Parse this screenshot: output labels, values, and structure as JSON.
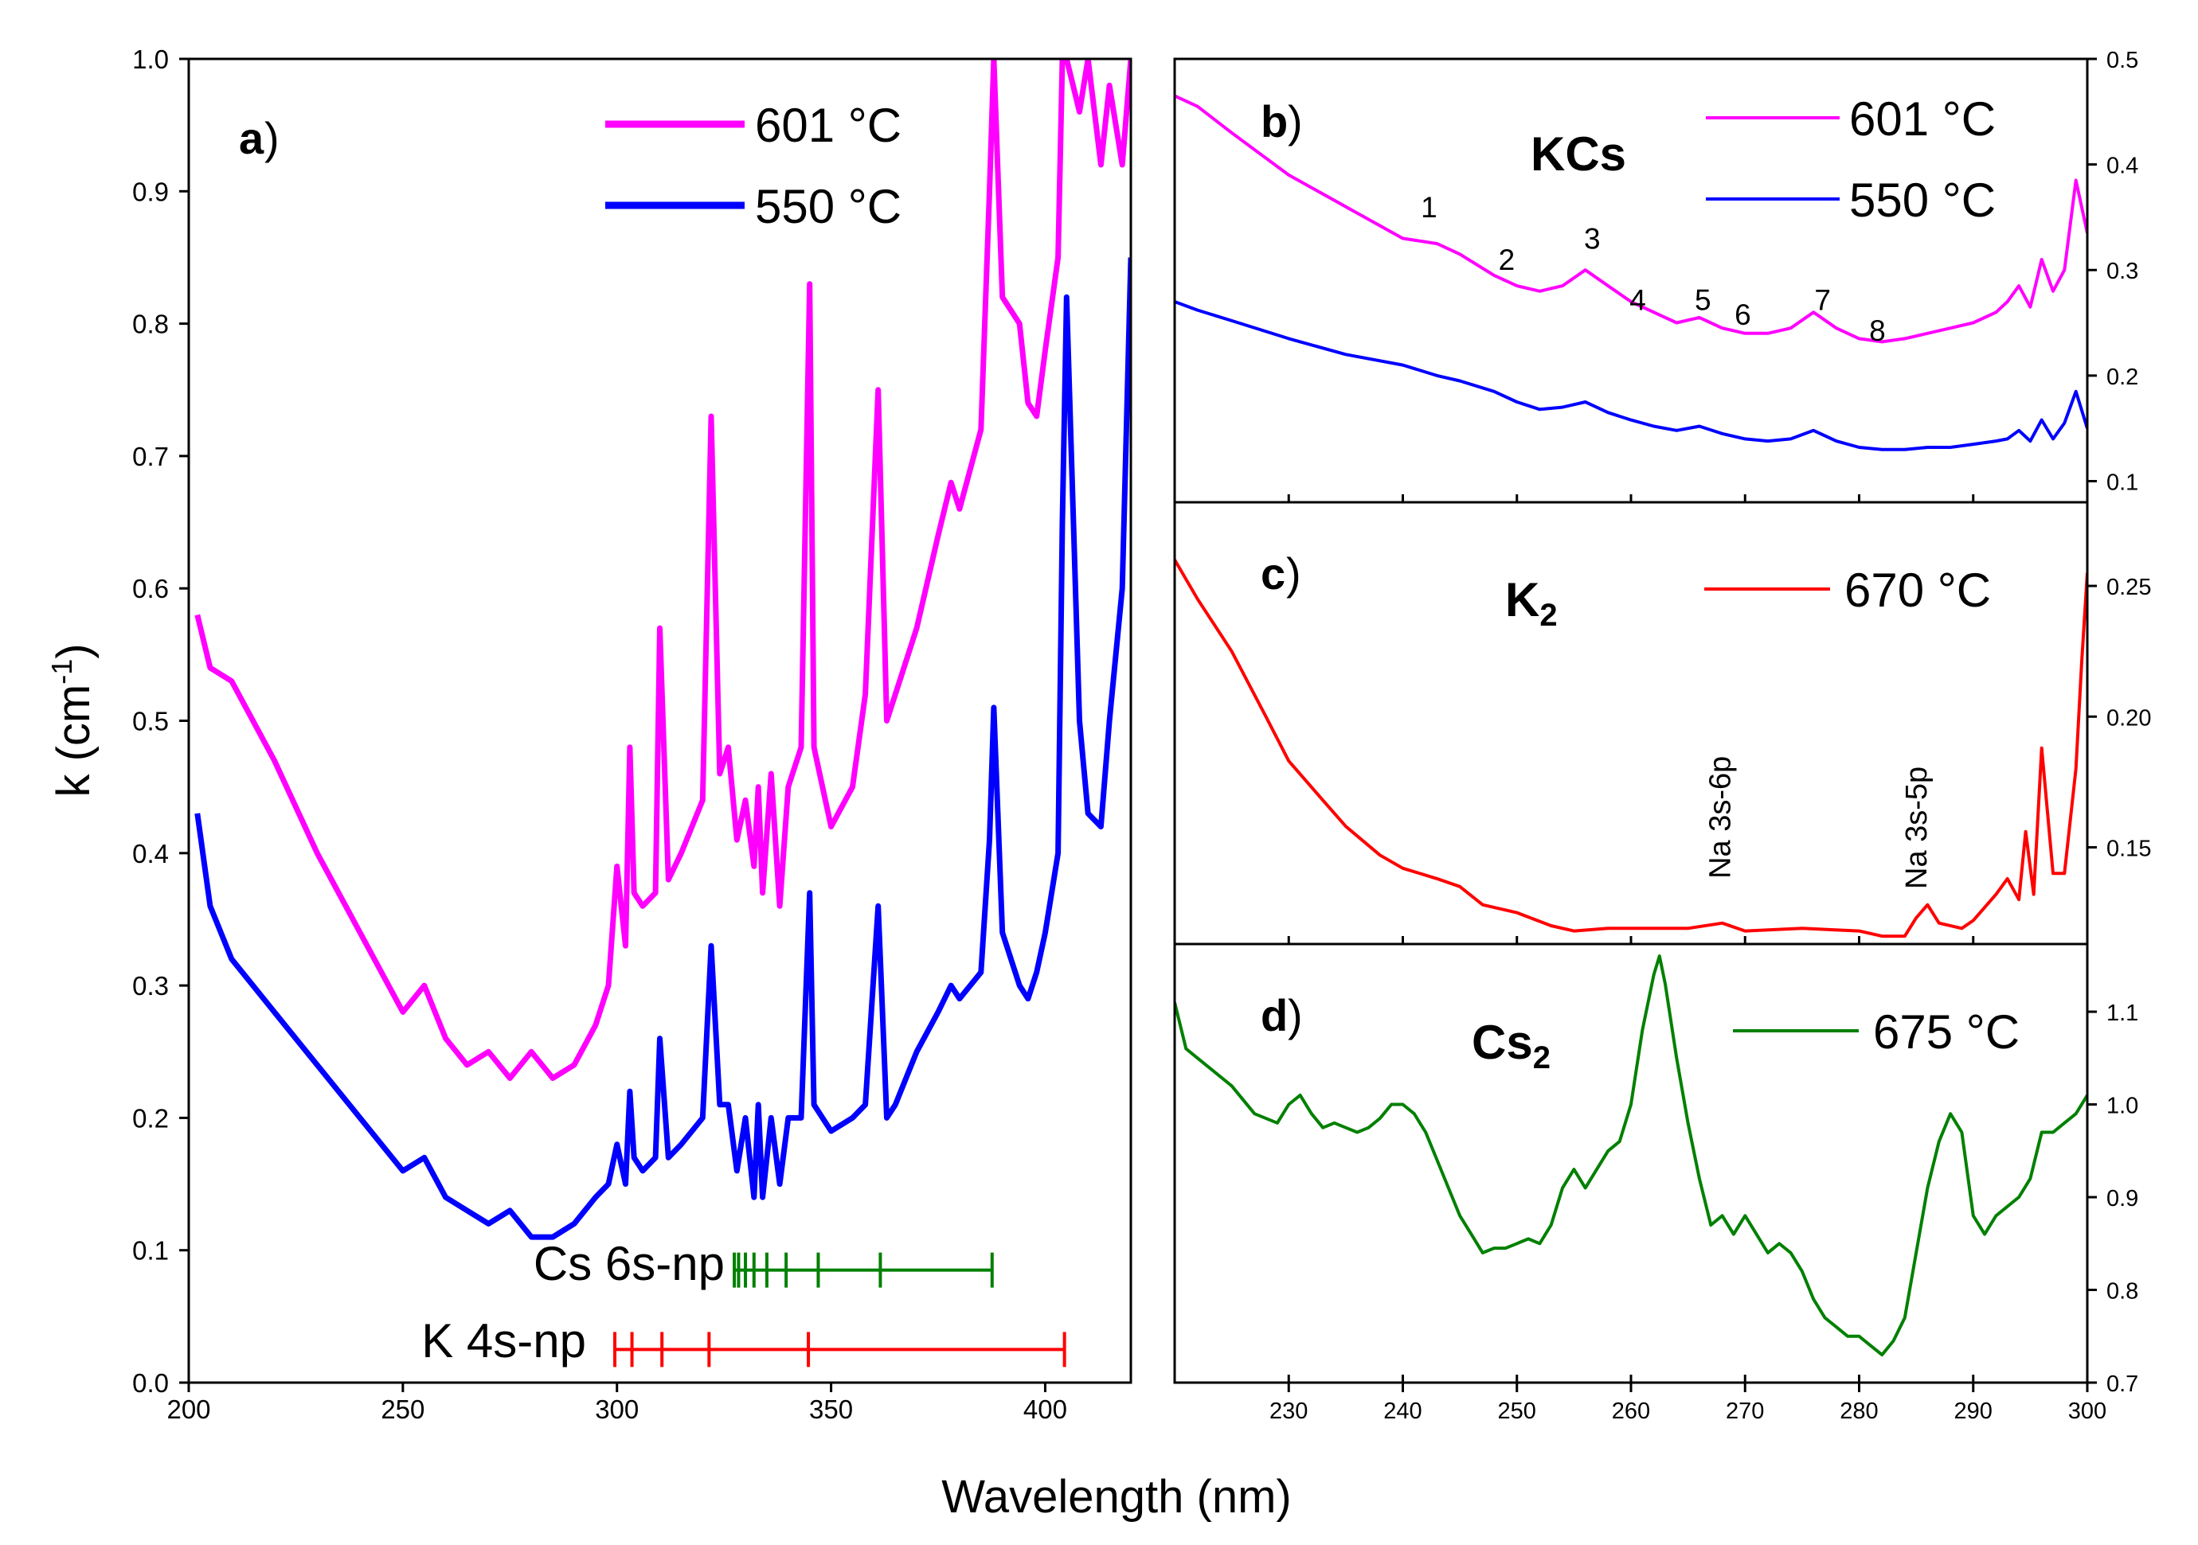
{
  "chart_data": [
    {
      "panel": "a",
      "type": "line",
      "ylabel": "k (cm",
      "ylabel_sup": "-1",
      "ylabel_end": ")",
      "xlim": [
        200,
        420
      ],
      "ylim": [
        0,
        1.0
      ],
      "xticks": [
        200,
        250,
        300,
        350,
        400
      ],
      "yticks": [
        "0.0",
        "0.1",
        "0.2",
        "0.3",
        "0.4",
        "0.5",
        "0.6",
        "0.7",
        "0.8",
        "0.9",
        "1.0"
      ],
      "series": [
        {
          "name": "601 °C",
          "color": "#ff00ff",
          "x": [
            202,
            205,
            210,
            220,
            230,
            240,
            250,
            255,
            260,
            265,
            270,
            275,
            280,
            285,
            290,
            295,
            298,
            300,
            302,
            303,
            304,
            306,
            309,
            310,
            312,
            315,
            320,
            322,
            324,
            326,
            328,
            330,
            332,
            333,
            334,
            336,
            338,
            340,
            343,
            345,
            346,
            348,
            350,
            355,
            358,
            361,
            363,
            365,
            370,
            375,
            378,
            380,
            385,
            387,
            388,
            390,
            394,
            396,
            398,
            400,
            403,
            404,
            405,
            408,
            410,
            413,
            415,
            418,
            420
          ],
          "y": [
            0.58,
            0.54,
            0.53,
            0.47,
            0.4,
            0.34,
            0.28,
            0.3,
            0.26,
            0.24,
            0.25,
            0.23,
            0.25,
            0.23,
            0.24,
            0.27,
            0.3,
            0.39,
            0.33,
            0.48,
            0.37,
            0.36,
            0.37,
            0.57,
            0.38,
            0.4,
            0.44,
            0.73,
            0.46,
            0.48,
            0.41,
            0.44,
            0.39,
            0.45,
            0.37,
            0.46,
            0.36,
            0.45,
            0.48,
            0.83,
            0.48,
            0.45,
            0.42,
            0.45,
            0.52,
            0.75,
            0.5,
            0.52,
            0.57,
            0.64,
            0.68,
            0.66,
            0.72,
            0.9,
            1.0,
            0.82,
            0.8,
            0.74,
            0.73,
            0.78,
            0.85,
            1.0,
            1.0,
            0.96,
            1.0,
            0.92,
            0.98,
            0.92,
            1.0
          ]
        },
        {
          "name": "550 °C",
          "color": "#0000ff",
          "x": [
            202,
            205,
            210,
            220,
            230,
            240,
            250,
            255,
            260,
            265,
            270,
            275,
            280,
            285,
            290,
            295,
            298,
            300,
            302,
            303,
            304,
            306,
            309,
            310,
            312,
            315,
            320,
            322,
            324,
            326,
            328,
            330,
            332,
            333,
            334,
            336,
            338,
            340,
            343,
            345,
            346,
            348,
            350,
            355,
            358,
            361,
            363,
            365,
            370,
            375,
            378,
            380,
            385,
            387,
            388,
            390,
            394,
            396,
            398,
            400,
            403,
            404,
            405,
            408,
            410,
            413,
            415,
            418,
            420
          ],
          "y": [
            0.43,
            0.36,
            0.32,
            0.28,
            0.24,
            0.2,
            0.16,
            0.17,
            0.14,
            0.13,
            0.12,
            0.13,
            0.11,
            0.11,
            0.12,
            0.14,
            0.15,
            0.18,
            0.15,
            0.22,
            0.17,
            0.16,
            0.17,
            0.26,
            0.17,
            0.18,
            0.2,
            0.33,
            0.21,
            0.21,
            0.16,
            0.2,
            0.14,
            0.21,
            0.14,
            0.2,
            0.15,
            0.2,
            0.2,
            0.37,
            0.21,
            0.2,
            0.19,
            0.2,
            0.21,
            0.36,
            0.2,
            0.21,
            0.25,
            0.28,
            0.3,
            0.29,
            0.31,
            0.41,
            0.51,
            0.34,
            0.3,
            0.29,
            0.31,
            0.34,
            0.4,
            0.65,
            0.82,
            0.5,
            0.43,
            0.42,
            0.5,
            0.6,
            0.85
          ]
        }
      ],
      "transitions": [
        {
          "label": "Cs 6s-np",
          "color": "#008000",
          "y": 0.085,
          "lines": [
            327.4,
            328.4,
            330.0,
            332.0,
            335.0,
            339.5,
            347.0,
            361.5,
            387.6
          ]
        },
        {
          "label": "K 4s-np",
          "color": "#ff0000",
          "y": 0.025,
          "lines": [
            299.5,
            303.5,
            310.5,
            321.5,
            344.7,
            404.5
          ]
        }
      ]
    },
    {
      "panel": "b",
      "species": "KCs",
      "type": "line",
      "xlim": [
        220,
        300
      ],
      "ylim": [
        0.08,
        0.5
      ],
      "yticks": [
        "0.1",
        "0.2",
        "0.3",
        "0.4",
        "0.5"
      ],
      "series": [
        {
          "name": "601 °C",
          "color": "#ff00ff",
          "x": [
            220,
            222,
            225,
            230,
            235,
            240,
            243,
            245,
            248,
            250,
            252,
            254,
            256,
            258,
            260,
            262,
            264,
            266,
            268,
            270,
            272,
            274,
            276,
            278,
            280,
            282,
            284,
            286,
            288,
            290,
            292,
            293,
            294,
            295,
            296,
            297,
            298,
            299,
            300
          ],
          "y": [
            0.465,
            0.455,
            0.43,
            0.39,
            0.36,
            0.33,
            0.325,
            0.315,
            0.295,
            0.285,
            0.28,
            0.285,
            0.3,
            0.285,
            0.27,
            0.26,
            0.25,
            0.255,
            0.245,
            0.24,
            0.24,
            0.245,
            0.26,
            0.245,
            0.235,
            0.232,
            0.235,
            0.24,
            0.245,
            0.25,
            0.26,
            0.27,
            0.285,
            0.265,
            0.31,
            0.28,
            0.3,
            0.385,
            0.335
          ]
        },
        {
          "name": "550 °C",
          "color": "#0000ff",
          "x": [
            220,
            222,
            225,
            230,
            235,
            240,
            243,
            245,
            248,
            250,
            252,
            254,
            256,
            258,
            260,
            262,
            264,
            266,
            268,
            270,
            272,
            274,
            276,
            278,
            280,
            282,
            284,
            286,
            288,
            290,
            292,
            293,
            294,
            295,
            296,
            297,
            298,
            299,
            300
          ],
          "y": [
            0.27,
            0.262,
            0.252,
            0.235,
            0.22,
            0.21,
            0.2,
            0.195,
            0.185,
            0.175,
            0.168,
            0.17,
            0.175,
            0.165,
            0.158,
            0.152,
            0.148,
            0.152,
            0.145,
            0.14,
            0.138,
            0.14,
            0.148,
            0.138,
            0.132,
            0.13,
            0.13,
            0.132,
            0.132,
            0.135,
            0.138,
            0.14,
            0.148,
            0.138,
            0.158,
            0.14,
            0.155,
            0.185,
            0.15
          ]
        }
      ],
      "peak_labels": [
        {
          "text": "1",
          "x": 242.3,
          "y": 0.35
        },
        {
          "text": "2",
          "x": 249.1,
          "y": 0.3
        },
        {
          "text": "3",
          "x": 256.6,
          "y": 0.32
        },
        {
          "text": "4",
          "x": 260.6,
          "y": 0.262
        },
        {
          "text": "5",
          "x": 266.3,
          "y": 0.262
        },
        {
          "text": "6",
          "x": 269.8,
          "y": 0.248
        },
        {
          "text": "7",
          "x": 276.8,
          "y": 0.262
        },
        {
          "text": "8",
          "x": 281.6,
          "y": 0.233
        }
      ]
    },
    {
      "panel": "c",
      "species": "K",
      "species_sub": "2",
      "type": "line",
      "xlim": [
        220,
        300
      ],
      "ylim": [
        0.113,
        0.282
      ],
      "yticks": [
        "0.15",
        "0.20",
        "0.25"
      ],
      "series": [
        {
          "name": "670 °C",
          "color": "#ff0000",
          "x": [
            220,
            222,
            225,
            228,
            230,
            233,
            235,
            238,
            240,
            243,
            245,
            247,
            250,
            253,
            255,
            258,
            260,
            265,
            268,
            270,
            275,
            280,
            282,
            284,
            285,
            286,
            287,
            289,
            290,
            292,
            293,
            294,
            294.6,
            295.3,
            296,
            297,
            298,
            299,
            299.5,
            300
          ],
          "y": [
            0.26,
            0.245,
            0.225,
            0.2,
            0.183,
            0.168,
            0.158,
            0.147,
            0.142,
            0.138,
            0.135,
            0.128,
            0.125,
            0.12,
            0.118,
            0.119,
            0.119,
            0.119,
            0.121,
            0.118,
            0.119,
            0.118,
            0.116,
            0.116,
            0.123,
            0.128,
            0.121,
            0.119,
            0.122,
            0.132,
            0.138,
            0.13,
            0.156,
            0.132,
            0.188,
            0.14,
            0.14,
            0.18,
            0.22,
            0.255
          ]
        }
      ],
      "annotations": [
        {
          "text": "Na 3s-6p",
          "x": 268.7,
          "y": 0.138
        },
        {
          "text": "Na 3s-5p",
          "x": 285.9,
          "y": 0.134
        }
      ]
    },
    {
      "panel": "d",
      "species": "Cs",
      "species_sub": "2",
      "type": "line",
      "xlim": [
        220,
        300
      ],
      "xlabel": "Wavelength (nm)",
      "xticks": [
        230,
        240,
        250,
        260,
        270,
        280,
        290,
        300
      ],
      "ylim": [
        0.7,
        1.173
      ],
      "yticks": [
        "0.7",
        "0.8",
        "0.9",
        "1.0",
        "1.1"
      ],
      "series": [
        {
          "name": "675 °C",
          "color": "#008000",
          "x": [
            220,
            221,
            223,
            225,
            227,
            229,
            230,
            231,
            232,
            233,
            234,
            235,
            236,
            237,
            238,
            239,
            240,
            241,
            242,
            243,
            244,
            245,
            246,
            247,
            248,
            249,
            250,
            251,
            252,
            253,
            254,
            255,
            256,
            257,
            258,
            259,
            260,
            261,
            262,
            262.5,
            263,
            264,
            265,
            266,
            267,
            268,
            269,
            270,
            271,
            272,
            273,
            274,
            275,
            276,
            277,
            278,
            279,
            280,
            281,
            282,
            283,
            284,
            285,
            286,
            287,
            288,
            289,
            290,
            291,
            292,
            293,
            294,
            295,
            296,
            297,
            298,
            299,
            300
          ],
          "y": [
            1.11,
            1.06,
            1.04,
            1.02,
            0.99,
            0.98,
            1.0,
            1.01,
            0.99,
            0.975,
            0.98,
            0.975,
            0.97,
            0.975,
            0.985,
            1.0,
            1.0,
            0.99,
            0.97,
            0.94,
            0.91,
            0.88,
            0.86,
            0.84,
            0.845,
            0.845,
            0.85,
            0.855,
            0.85,
            0.87,
            0.91,
            0.93,
            0.91,
            0.93,
            0.95,
            0.96,
            1.0,
            1.08,
            1.14,
            1.16,
            1.13,
            1.05,
            0.98,
            0.92,
            0.87,
            0.88,
            0.86,
            0.88,
            0.86,
            0.84,
            0.85,
            0.84,
            0.82,
            0.79,
            0.77,
            0.76,
            0.75,
            0.75,
            0.74,
            0.73,
            0.745,
            0.77,
            0.84,
            0.91,
            0.96,
            0.99,
            0.97,
            0.88,
            0.86,
            0.88,
            0.89,
            0.9,
            0.92,
            0.97,
            0.97,
            0.98,
            0.99,
            1.01
          ]
        }
      ]
    }
  ]
}
